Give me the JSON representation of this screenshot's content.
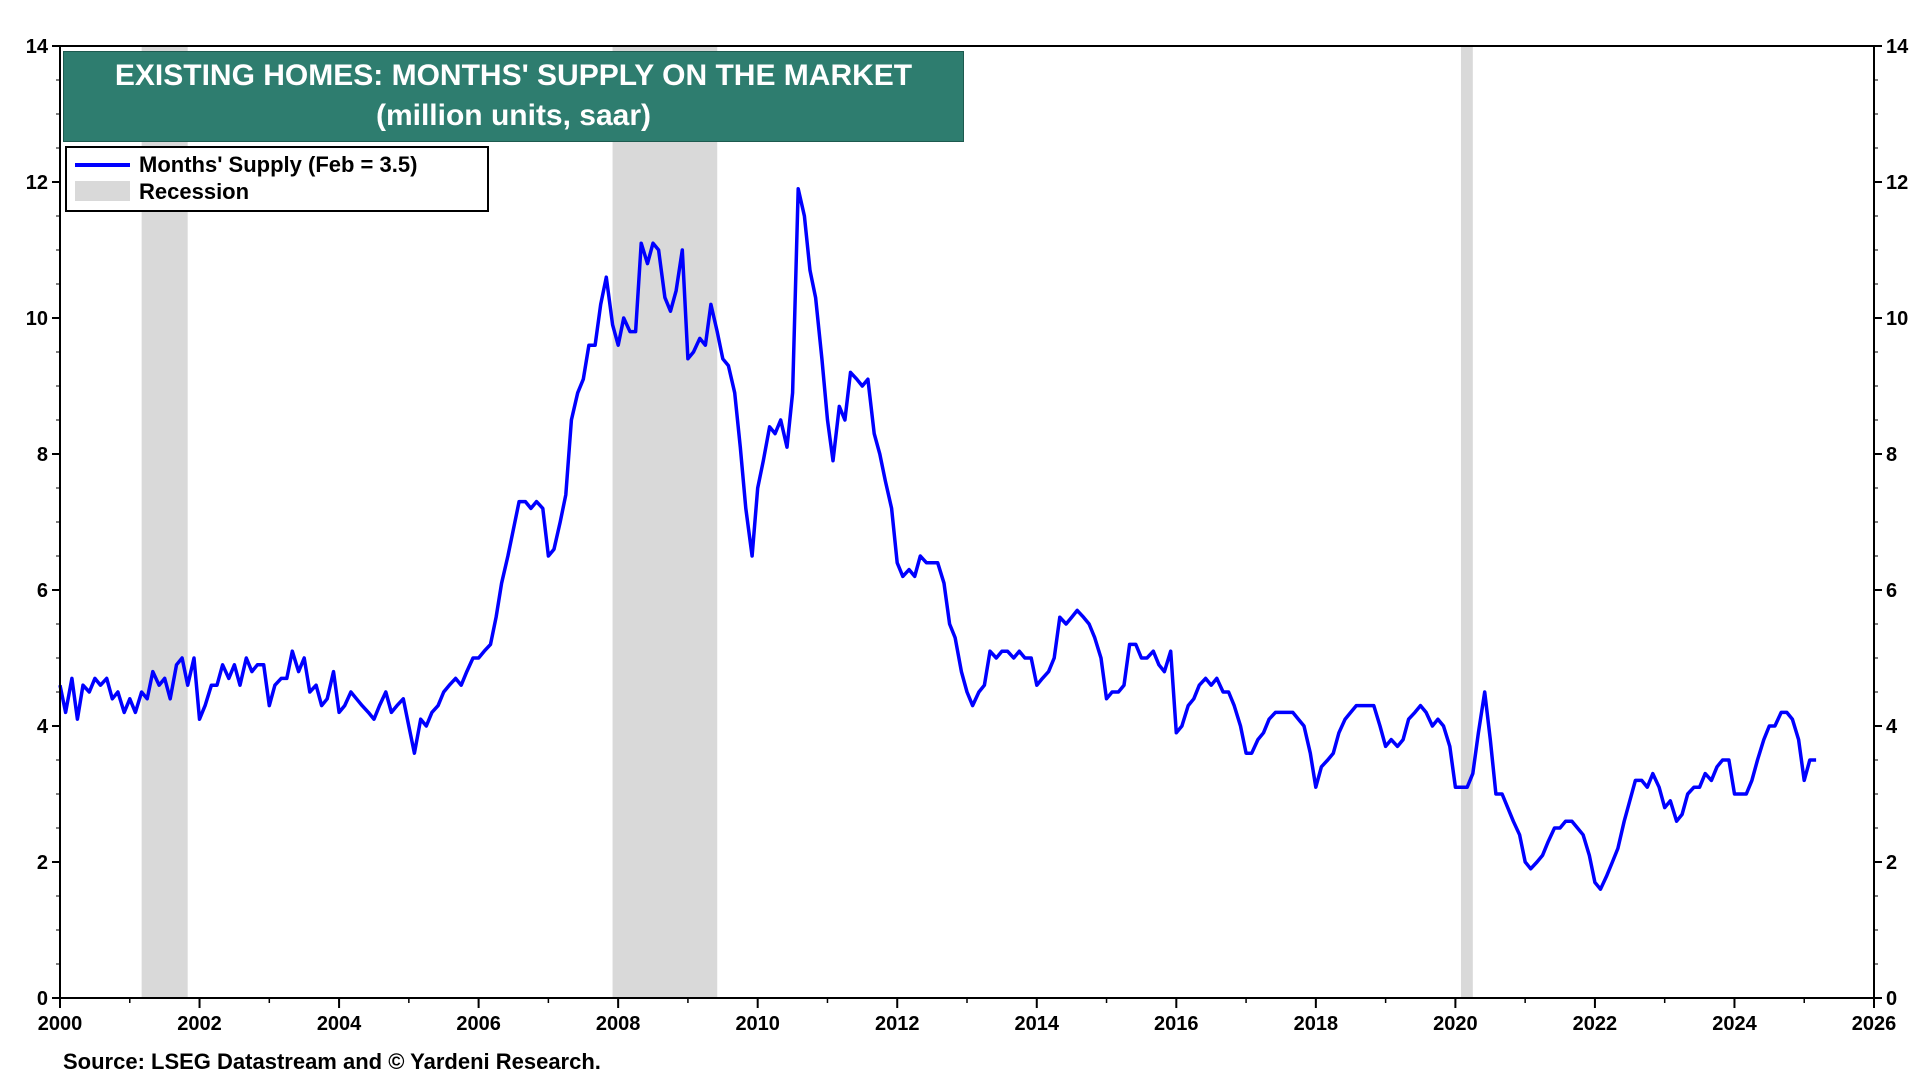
{
  "title": {
    "line1": "EXISTING HOMES: MONTHS' SUPPLY ON  THE MARKET",
    "line2": "(million units, saar)"
  },
  "legend": {
    "series": "Months' Supply (Feb = 3.5)",
    "recession": "Recession"
  },
  "source": "Source: LSEG Datastream and © Yardeni Research.",
  "colors": {
    "series": "#0000ff",
    "recession": "#d9d9d9",
    "title_bg": "#2e7d6f",
    "title_text": "#ffffff"
  },
  "chart_data": {
    "type": "line",
    "xlim": [
      2000,
      2026
    ],
    "ylim": [
      0,
      14
    ],
    "x_ticks": [
      2000,
      2002,
      2004,
      2006,
      2008,
      2010,
      2012,
      2014,
      2016,
      2018,
      2020,
      2022,
      2024,
      2026
    ],
    "y_ticks": [
      0,
      2,
      4,
      6,
      8,
      10,
      12,
      14
    ],
    "y_axis": "both sides",
    "grid": false,
    "legend_position": "top-left",
    "recessions": [
      [
        2001.17,
        2001.83
      ],
      [
        2007.92,
        2009.42
      ],
      [
        2020.08,
        2020.25
      ]
    ],
    "series": [
      {
        "name": "Months' Supply (Feb = 3.5)",
        "points": [
          [
            2000.0,
            4.6
          ],
          [
            2000.08,
            4.2
          ],
          [
            2000.17,
            4.7
          ],
          [
            2000.25,
            4.1
          ],
          [
            2000.33,
            4.6
          ],
          [
            2000.42,
            4.5
          ],
          [
            2000.5,
            4.7
          ],
          [
            2000.58,
            4.6
          ],
          [
            2000.67,
            4.7
          ],
          [
            2000.75,
            4.4
          ],
          [
            2000.83,
            4.5
          ],
          [
            2000.92,
            4.2
          ],
          [
            2001.0,
            4.4
          ],
          [
            2001.08,
            4.2
          ],
          [
            2001.17,
            4.5
          ],
          [
            2001.25,
            4.4
          ],
          [
            2001.33,
            4.8
          ],
          [
            2001.42,
            4.6
          ],
          [
            2001.5,
            4.7
          ],
          [
            2001.58,
            4.4
          ],
          [
            2001.67,
            4.9
          ],
          [
            2001.75,
            5.0
          ],
          [
            2001.83,
            4.6
          ],
          [
            2001.92,
            5.0
          ],
          [
            2002.0,
            4.1
          ],
          [
            2002.08,
            4.3
          ],
          [
            2002.17,
            4.6
          ],
          [
            2002.25,
            4.6
          ],
          [
            2002.33,
            4.9
          ],
          [
            2002.42,
            4.7
          ],
          [
            2002.5,
            4.9
          ],
          [
            2002.58,
            4.6
          ],
          [
            2002.67,
            5.0
          ],
          [
            2002.75,
            4.8
          ],
          [
            2002.83,
            4.9
          ],
          [
            2002.92,
            4.9
          ],
          [
            2003.0,
            4.3
          ],
          [
            2003.08,
            4.6
          ],
          [
            2003.17,
            4.7
          ],
          [
            2003.25,
            4.7
          ],
          [
            2003.33,
            5.1
          ],
          [
            2003.42,
            4.8
          ],
          [
            2003.5,
            5.0
          ],
          [
            2003.58,
            4.5
          ],
          [
            2003.67,
            4.6
          ],
          [
            2003.75,
            4.3
          ],
          [
            2003.83,
            4.4
          ],
          [
            2003.92,
            4.8
          ],
          [
            2004.0,
            4.2
          ],
          [
            2004.08,
            4.3
          ],
          [
            2004.17,
            4.5
          ],
          [
            2004.25,
            4.4
          ],
          [
            2004.33,
            4.3
          ],
          [
            2004.42,
            4.2
          ],
          [
            2004.5,
            4.1
          ],
          [
            2004.58,
            4.3
          ],
          [
            2004.67,
            4.5
          ],
          [
            2004.75,
            4.2
          ],
          [
            2004.83,
            4.3
          ],
          [
            2004.92,
            4.4
          ],
          [
            2005.0,
            4.0
          ],
          [
            2005.08,
            3.6
          ],
          [
            2005.17,
            4.1
          ],
          [
            2005.25,
            4.0
          ],
          [
            2005.33,
            4.2
          ],
          [
            2005.42,
            4.3
          ],
          [
            2005.5,
            4.5
          ],
          [
            2005.58,
            4.6
          ],
          [
            2005.67,
            4.7
          ],
          [
            2005.75,
            4.6
          ],
          [
            2005.83,
            4.8
          ],
          [
            2005.92,
            5.0
          ],
          [
            2006.0,
            5.0
          ],
          [
            2006.08,
            5.1
          ],
          [
            2006.17,
            5.2
          ],
          [
            2006.25,
            5.6
          ],
          [
            2006.33,
            6.1
          ],
          [
            2006.42,
            6.5
          ],
          [
            2006.5,
            6.9
          ],
          [
            2006.58,
            7.3
          ],
          [
            2006.67,
            7.3
          ],
          [
            2006.75,
            7.2
          ],
          [
            2006.83,
            7.3
          ],
          [
            2006.92,
            7.2
          ],
          [
            2007.0,
            6.5
          ],
          [
            2007.08,
            6.6
          ],
          [
            2007.17,
            7.0
          ],
          [
            2007.25,
            7.4
          ],
          [
            2007.33,
            8.5
          ],
          [
            2007.42,
            8.9
          ],
          [
            2007.5,
            9.1
          ],
          [
            2007.58,
            9.6
          ],
          [
            2007.67,
            9.6
          ],
          [
            2007.75,
            10.2
          ],
          [
            2007.83,
            10.6
          ],
          [
            2007.92,
            9.9
          ],
          [
            2008.0,
            9.6
          ],
          [
            2008.08,
            10.0
          ],
          [
            2008.17,
            9.8
          ],
          [
            2008.25,
            9.8
          ],
          [
            2008.33,
            11.1
          ],
          [
            2008.42,
            10.8
          ],
          [
            2008.5,
            11.1
          ],
          [
            2008.58,
            11.0
          ],
          [
            2008.67,
            10.3
          ],
          [
            2008.75,
            10.1
          ],
          [
            2008.83,
            10.4
          ],
          [
            2008.92,
            11.0
          ],
          [
            2009.0,
            9.4
          ],
          [
            2009.08,
            9.5
          ],
          [
            2009.17,
            9.7
          ],
          [
            2009.25,
            9.6
          ],
          [
            2009.33,
            10.2
          ],
          [
            2009.42,
            9.8
          ],
          [
            2009.5,
            9.4
          ],
          [
            2009.58,
            9.3
          ],
          [
            2009.67,
            8.9
          ],
          [
            2009.75,
            8.1
          ],
          [
            2009.83,
            7.2
          ],
          [
            2009.92,
            6.5
          ],
          [
            2010.0,
            7.5
          ],
          [
            2010.08,
            7.9
          ],
          [
            2010.17,
            8.4
          ],
          [
            2010.25,
            8.3
          ],
          [
            2010.33,
            8.5
          ],
          [
            2010.42,
            8.1
          ],
          [
            2010.5,
            8.9
          ],
          [
            2010.58,
            11.9
          ],
          [
            2010.67,
            11.5
          ],
          [
            2010.75,
            10.7
          ],
          [
            2010.83,
            10.3
          ],
          [
            2010.92,
            9.4
          ],
          [
            2011.0,
            8.5
          ],
          [
            2011.08,
            7.9
          ],
          [
            2011.17,
            8.7
          ],
          [
            2011.25,
            8.5
          ],
          [
            2011.33,
            9.2
          ],
          [
            2011.42,
            9.1
          ],
          [
            2011.5,
            9.0
          ],
          [
            2011.58,
            9.1
          ],
          [
            2011.67,
            8.3
          ],
          [
            2011.75,
            8.0
          ],
          [
            2011.83,
            7.6
          ],
          [
            2011.92,
            7.2
          ],
          [
            2012.0,
            6.4
          ],
          [
            2012.08,
            6.2
          ],
          [
            2012.17,
            6.3
          ],
          [
            2012.25,
            6.2
          ],
          [
            2012.33,
            6.5
          ],
          [
            2012.42,
            6.4
          ],
          [
            2012.5,
            6.4
          ],
          [
            2012.58,
            6.4
          ],
          [
            2012.67,
            6.1
          ],
          [
            2012.75,
            5.5
          ],
          [
            2012.83,
            5.3
          ],
          [
            2012.92,
            4.8
          ],
          [
            2013.0,
            4.5
          ],
          [
            2013.08,
            4.3
          ],
          [
            2013.17,
            4.5
          ],
          [
            2013.25,
            4.6
          ],
          [
            2013.33,
            5.1
          ],
          [
            2013.42,
            5.0
          ],
          [
            2013.5,
            5.1
          ],
          [
            2013.58,
            5.1
          ],
          [
            2013.67,
            5.0
          ],
          [
            2013.75,
            5.1
          ],
          [
            2013.83,
            5.0
          ],
          [
            2013.92,
            5.0
          ],
          [
            2014.0,
            4.6
          ],
          [
            2014.08,
            4.7
          ],
          [
            2014.17,
            4.8
          ],
          [
            2014.25,
            5.0
          ],
          [
            2014.33,
            5.6
          ],
          [
            2014.42,
            5.5
          ],
          [
            2014.5,
            5.6
          ],
          [
            2014.58,
            5.7
          ],
          [
            2014.67,
            5.6
          ],
          [
            2014.75,
            5.5
          ],
          [
            2014.83,
            5.3
          ],
          [
            2014.92,
            5.0
          ],
          [
            2015.0,
            4.4
          ],
          [
            2015.08,
            4.5
          ],
          [
            2015.17,
            4.5
          ],
          [
            2015.25,
            4.6
          ],
          [
            2015.33,
            5.2
          ],
          [
            2015.42,
            5.2
          ],
          [
            2015.5,
            5.0
          ],
          [
            2015.58,
            5.0
          ],
          [
            2015.67,
            5.1
          ],
          [
            2015.75,
            4.9
          ],
          [
            2015.83,
            4.8
          ],
          [
            2015.92,
            5.1
          ],
          [
            2016.0,
            3.9
          ],
          [
            2016.08,
            4.0
          ],
          [
            2016.17,
            4.3
          ],
          [
            2016.25,
            4.4
          ],
          [
            2016.33,
            4.6
          ],
          [
            2016.42,
            4.7
          ],
          [
            2016.5,
            4.6
          ],
          [
            2016.58,
            4.7
          ],
          [
            2016.67,
            4.5
          ],
          [
            2016.75,
            4.5
          ],
          [
            2016.83,
            4.3
          ],
          [
            2016.92,
            4.0
          ],
          [
            2017.0,
            3.6
          ],
          [
            2017.08,
            3.6
          ],
          [
            2017.17,
            3.8
          ],
          [
            2017.25,
            3.9
          ],
          [
            2017.33,
            4.1
          ],
          [
            2017.42,
            4.2
          ],
          [
            2017.5,
            4.2
          ],
          [
            2017.58,
            4.2
          ],
          [
            2017.67,
            4.2
          ],
          [
            2017.75,
            4.1
          ],
          [
            2017.83,
            4.0
          ],
          [
            2017.92,
            3.6
          ],
          [
            2018.0,
            3.1
          ],
          [
            2018.08,
            3.4
          ],
          [
            2018.17,
            3.5
          ],
          [
            2018.25,
            3.6
          ],
          [
            2018.33,
            3.9
          ],
          [
            2018.42,
            4.1
          ],
          [
            2018.5,
            4.2
          ],
          [
            2018.58,
            4.3
          ],
          [
            2018.67,
            4.3
          ],
          [
            2018.75,
            4.3
          ],
          [
            2018.83,
            4.3
          ],
          [
            2018.92,
            4.0
          ],
          [
            2019.0,
            3.7
          ],
          [
            2019.08,
            3.8
          ],
          [
            2019.17,
            3.7
          ],
          [
            2019.25,
            3.8
          ],
          [
            2019.33,
            4.1
          ],
          [
            2019.42,
            4.2
          ],
          [
            2019.5,
            4.3
          ],
          [
            2019.58,
            4.2
          ],
          [
            2019.67,
            4.0
          ],
          [
            2019.75,
            4.1
          ],
          [
            2019.83,
            4.0
          ],
          [
            2019.92,
            3.7
          ],
          [
            2020.0,
            3.1
          ],
          [
            2020.08,
            3.1
          ],
          [
            2020.17,
            3.1
          ],
          [
            2020.25,
            3.3
          ],
          [
            2020.33,
            3.9
          ],
          [
            2020.42,
            4.5
          ],
          [
            2020.5,
            3.8
          ],
          [
            2020.58,
            3.0
          ],
          [
            2020.67,
            3.0
          ],
          [
            2020.75,
            2.8
          ],
          [
            2020.83,
            2.6
          ],
          [
            2020.92,
            2.4
          ],
          [
            2021.0,
            2.0
          ],
          [
            2021.08,
            1.9
          ],
          [
            2021.17,
            2.0
          ],
          [
            2021.25,
            2.1
          ],
          [
            2021.33,
            2.3
          ],
          [
            2021.42,
            2.5
          ],
          [
            2021.5,
            2.5
          ],
          [
            2021.58,
            2.6
          ],
          [
            2021.67,
            2.6
          ],
          [
            2021.75,
            2.5
          ],
          [
            2021.83,
            2.4
          ],
          [
            2021.92,
            2.1
          ],
          [
            2022.0,
            1.7
          ],
          [
            2022.08,
            1.6
          ],
          [
            2022.17,
            1.8
          ],
          [
            2022.25,
            2.0
          ],
          [
            2022.33,
            2.2
          ],
          [
            2022.42,
            2.6
          ],
          [
            2022.5,
            2.9
          ],
          [
            2022.58,
            3.2
          ],
          [
            2022.67,
            3.2
          ],
          [
            2022.75,
            3.1
          ],
          [
            2022.83,
            3.3
          ],
          [
            2022.92,
            3.1
          ],
          [
            2023.0,
            2.8
          ],
          [
            2023.08,
            2.9
          ],
          [
            2023.17,
            2.6
          ],
          [
            2023.25,
            2.7
          ],
          [
            2023.33,
            3.0
          ],
          [
            2023.42,
            3.1
          ],
          [
            2023.5,
            3.1
          ],
          [
            2023.58,
            3.3
          ],
          [
            2023.67,
            3.2
          ],
          [
            2023.75,
            3.4
          ],
          [
            2023.83,
            3.5
          ],
          [
            2023.92,
            3.5
          ],
          [
            2024.0,
            3.0
          ],
          [
            2024.08,
            3.0
          ],
          [
            2024.17,
            3.0
          ],
          [
            2024.25,
            3.2
          ],
          [
            2024.33,
            3.5
          ],
          [
            2024.42,
            3.8
          ],
          [
            2024.5,
            4.0
          ],
          [
            2024.58,
            4.0
          ],
          [
            2024.67,
            4.2
          ],
          [
            2024.75,
            4.2
          ],
          [
            2024.83,
            4.1
          ],
          [
            2024.92,
            3.8
          ],
          [
            2025.0,
            3.2
          ],
          [
            2025.08,
            3.5
          ],
          [
            2025.17,
            3.5
          ]
        ]
      }
    ]
  }
}
